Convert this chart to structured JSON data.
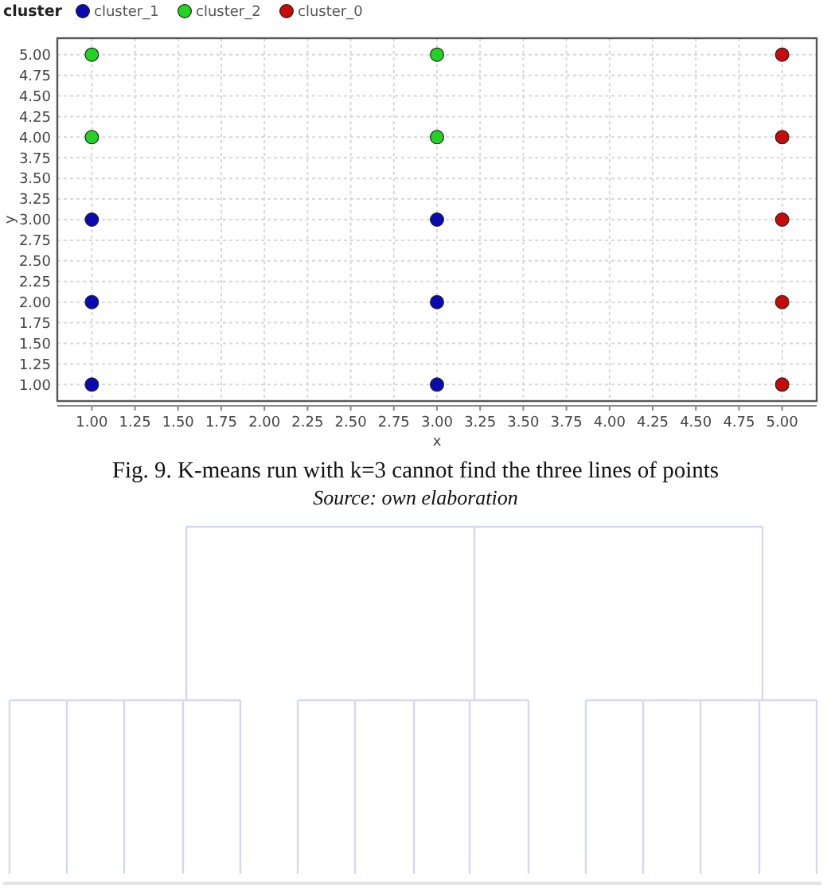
{
  "chart_data": {
    "type": "scatter",
    "xlabel": "x",
    "ylabel": "y",
    "legend_title": "cluster",
    "legend": "top left",
    "grid": true,
    "marker": "circle",
    "xlim": [
      0.8,
      5.2
    ],
    "xticks": [
      {
        "value": 1,
        "label": "1.00"
      },
      {
        "value": 1.25,
        "label": "1.25"
      },
      {
        "value": 1.5,
        "label": "1.50"
      },
      {
        "value": 1.75,
        "label": "1.75"
      },
      {
        "value": 2,
        "label": "2.00"
      },
      {
        "value": 2.25,
        "label": "2.25"
      },
      {
        "value": 2.5,
        "label": "2.50"
      },
      {
        "value": 2.75,
        "label": "2.75"
      },
      {
        "value": 3,
        "label": "3.00"
      },
      {
        "value": 3.25,
        "label": "3.25"
      },
      {
        "value": 3.5,
        "label": "3.50"
      },
      {
        "value": 3.75,
        "label": "3.75"
      },
      {
        "value": 4,
        "label": "4.00"
      },
      {
        "value": 4.25,
        "label": "4.25"
      },
      {
        "value": 4.5,
        "label": "4.50"
      },
      {
        "value": 4.75,
        "label": "4.75"
      },
      {
        "value": 5,
        "label": "5.00"
      }
    ],
    "ylim": [
      0.8,
      5.2
    ],
    "yticks": [
      {
        "value": 1,
        "label": "1.00"
      },
      {
        "value": 1.25,
        "label": "1.25"
      },
      {
        "value": 1.5,
        "label": "1.50"
      },
      {
        "value": 1.75,
        "label": "1.75"
      },
      {
        "value": 2,
        "label": "2.00"
      },
      {
        "value": 2.25,
        "label": "2.25"
      },
      {
        "value": 2.5,
        "label": "2.50"
      },
      {
        "value": 2.75,
        "label": "2.75"
      },
      {
        "value": 3,
        "label": "3.00"
      },
      {
        "value": 3.25,
        "label": "3.25"
      },
      {
        "value": 3.5,
        "label": "3.50"
      },
      {
        "value": 3.75,
        "label": "3.75"
      },
      {
        "value": 4,
        "label": "4.00"
      },
      {
        "value": 4.25,
        "label": "4.25"
      },
      {
        "value": 4.5,
        "label": "4.50"
      },
      {
        "value": 4.75,
        "label": "4.75"
      },
      {
        "value": 5,
        "label": "5.00"
      }
    ],
    "series": [
      {
        "name": "cluster_1",
        "color": "#0a0ab4",
        "x": [
          1,
          1,
          1,
          3,
          3,
          3
        ],
        "values": [
          1,
          2,
          3,
          1,
          2,
          3
        ]
      },
      {
        "name": "cluster_2",
        "color": "#22d422",
        "x": [
          1,
          1,
          3,
          3
        ],
        "values": [
          4,
          5,
          4,
          5
        ]
      },
      {
        "name": "cluster_0",
        "color": "#c80a0a",
        "x": [
          5,
          5,
          5,
          5,
          5
        ],
        "values": [
          1,
          2,
          3,
          4,
          5
        ]
      }
    ],
    "annotations": [
      "Fig. 9. K-means run with k=3 cannot find the three lines of points",
      "Source: own elaboration"
    ]
  }
}
